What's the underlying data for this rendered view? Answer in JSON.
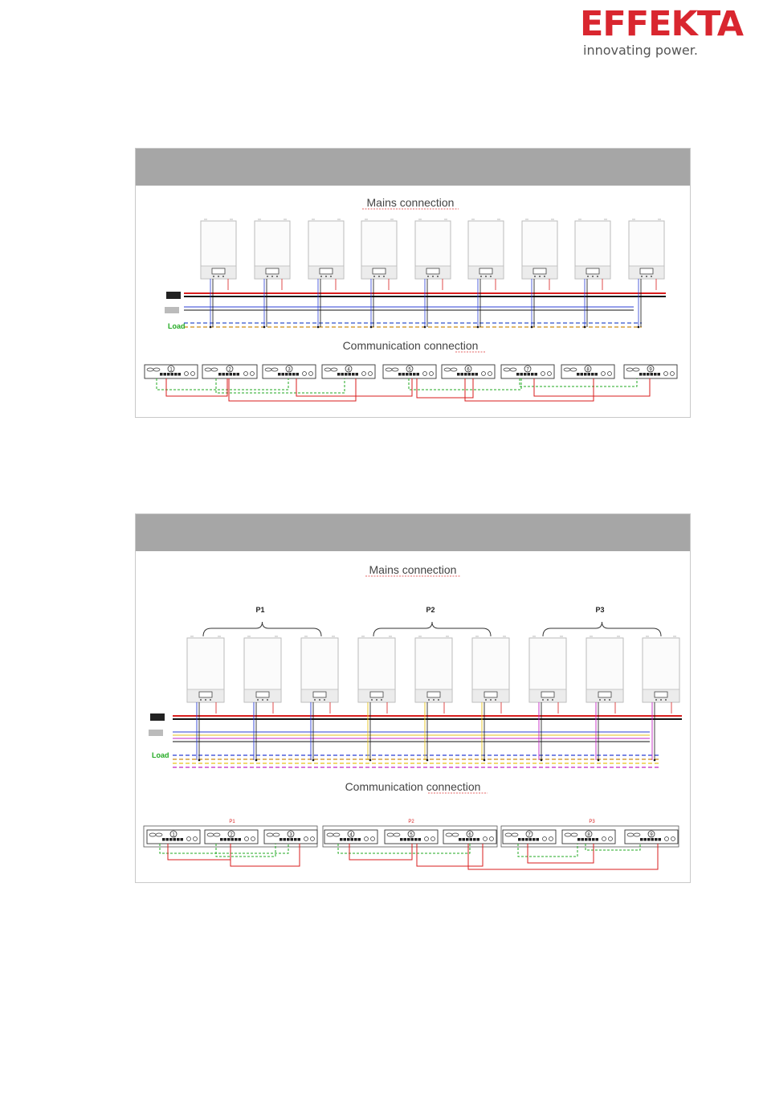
{
  "logo": {
    "brand": "EFFEKTA",
    "tagline": "innovating power."
  },
  "diagram1": {
    "mains_heading": "Mains connection",
    "comm_heading": "Communication connection",
    "load_label": "Load",
    "unit_numbers": [
      "1",
      "2",
      "3",
      "4",
      "5",
      "6",
      "7",
      "8",
      "9"
    ],
    "colors": {
      "phase": "#d81e1e",
      "neutral": "#111111",
      "line1": "#2b3fd4",
      "line_dash": "#3355cc",
      "n_dash": "#c98a14",
      "comm_green": "#22aa22",
      "comm_red": "#d81e1e"
    }
  },
  "diagram2": {
    "mains_heading": "Mains connection",
    "comm_heading": "Communication connection",
    "load_label": "Load",
    "groups": [
      "P1",
      "P2",
      "P3"
    ],
    "comm_groups": [
      "P1",
      "P2",
      "P3"
    ],
    "unit_numbers": [
      "1",
      "2",
      "3",
      "4",
      "5",
      "6",
      "7",
      "8",
      "9"
    ],
    "colors": {
      "phase": "#d81e1e",
      "neutral": "#111111",
      "p1": "#2b3fd4",
      "p2": "#e6c21a",
      "p3": "#c426c4",
      "n_dash": "#c98a14",
      "comm_green": "#22aa22",
      "comm_red": "#d81e1e"
    }
  }
}
